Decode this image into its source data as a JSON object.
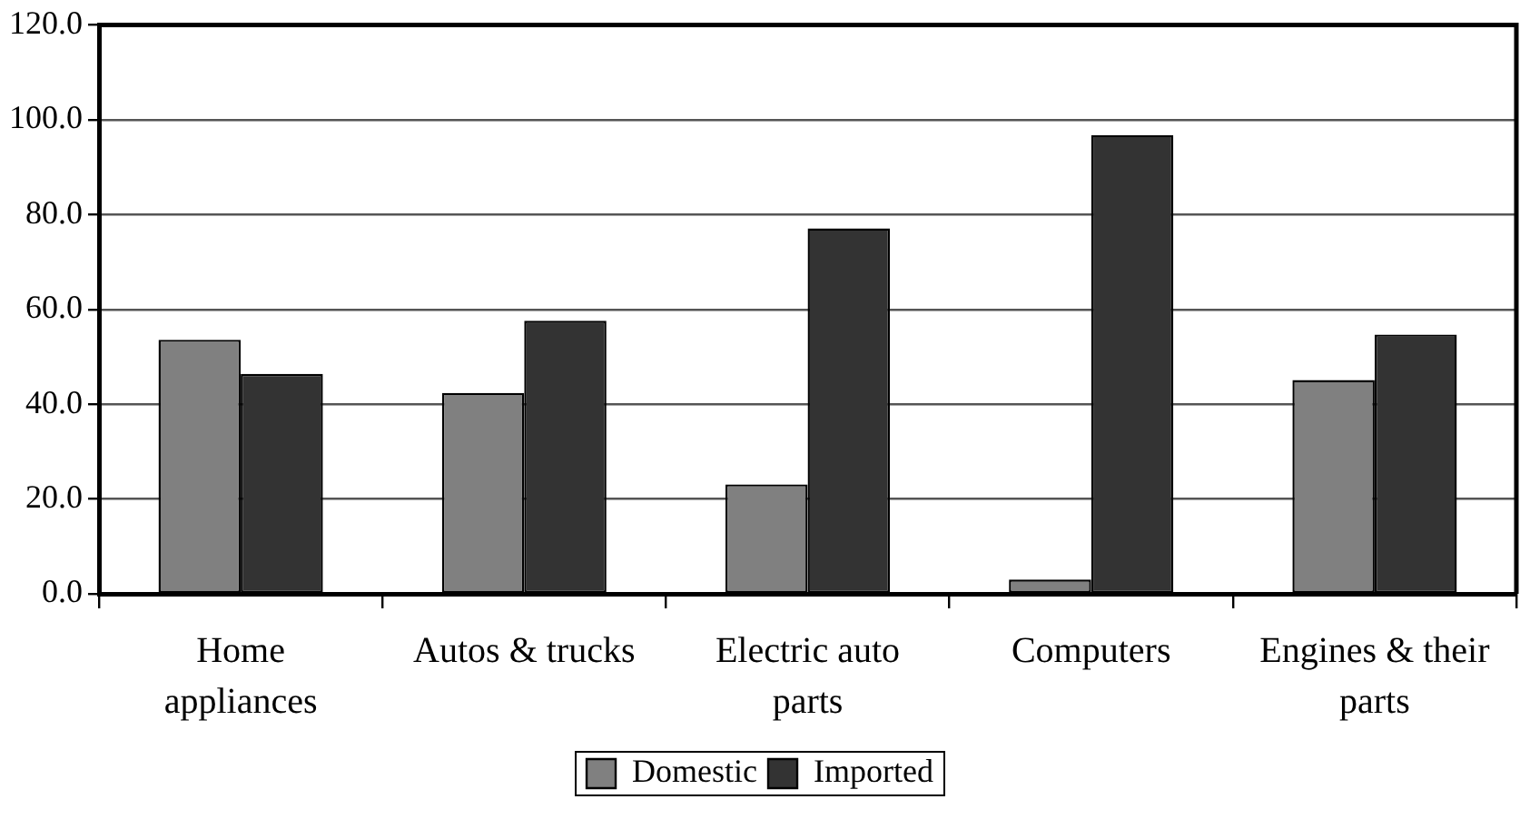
{
  "chart_data": {
    "type": "bar",
    "categories": [
      "Home appliances",
      "Autos & trucks",
      "Electric auto parts",
      "Computers",
      "Engines & their parts"
    ],
    "series": [
      {
        "name": "Domestic",
        "color": "#808080",
        "values": [
          53.6,
          42.4,
          23.1,
          3.0,
          45.1
        ]
      },
      {
        "name": "Imported",
        "color": "#333333",
        "values": [
          46.4,
          57.6,
          77.1,
          96.8,
          54.7
        ]
      }
    ],
    "ylim": [
      0,
      120
    ],
    "yticks": [
      {
        "value": 0,
        "label": "0.0"
      },
      {
        "value": 20,
        "label": "20.0"
      },
      {
        "value": 40,
        "label": "40.0"
      },
      {
        "value": 60,
        "label": "60.0"
      },
      {
        "value": 80,
        "label": "80.0"
      },
      {
        "value": 100,
        "label": "100.0"
      },
      {
        "value": 120,
        "label": "120.0"
      }
    ],
    "grid": "y",
    "legend": "bottom"
  }
}
